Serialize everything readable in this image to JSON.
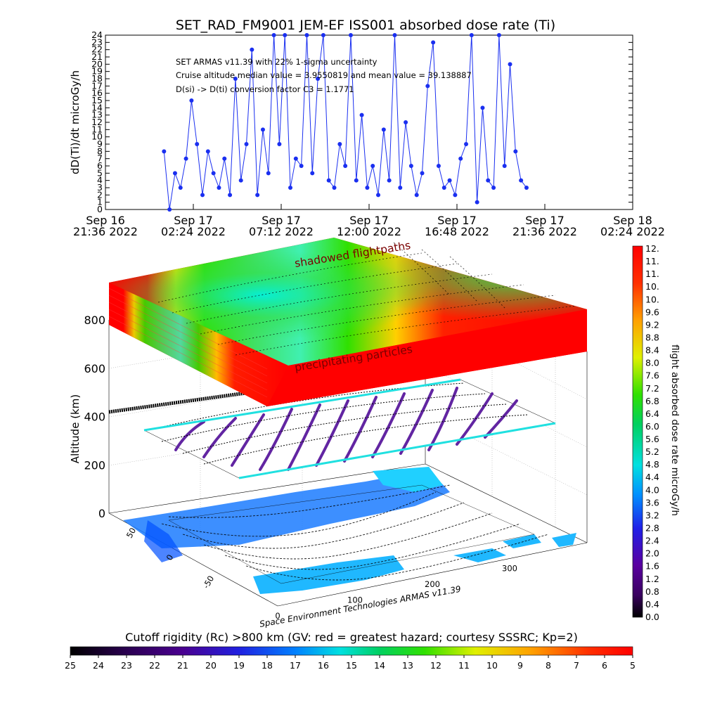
{
  "top_chart": {
    "title": "SET_RAD_FM9001  JEM-EF ISS001 absorbed dose rate (Ti)",
    "ylabel": "dD(Ti)/dt microGy/h",
    "annotations": [
      "SET ARMAS v11.39 with 22% 1-sigma uncertainty",
      "Cruise altitude median value = 3.9550819 and mean value = 39.138887",
      "D(si) -> D(ti) conversion factor C3 = 1.1771"
    ],
    "series_color": "#1a2ff0"
  },
  "chart_data": [
    {
      "type": "line",
      "title": "SET_RAD_FM9001  JEM-EF ISS001 absorbed dose rate (Ti)",
      "xlabel": "",
      "ylabel": "dD(Ti)/dt microGy/h",
      "ylim": [
        0,
        24
      ],
      "yticks": [
        0,
        1,
        2,
        3,
        4,
        5,
        6,
        7,
        8,
        9,
        10,
        11,
        12,
        13,
        14,
        15,
        16,
        17,
        18,
        19,
        20,
        21,
        22,
        23,
        24
      ],
      "xlim_hours": [
        0,
        28.8
      ],
      "xtick_labels": [
        {
          "top": "Sep 16",
          "bottom": "21:36 2022"
        },
        {
          "top": "Sep 17",
          "bottom": "02:24 2022"
        },
        {
          "top": "Sep 17",
          "bottom": "07:12 2022"
        },
        {
          "top": "Sep 17",
          "bottom": "12:00 2022"
        },
        {
          "top": "Sep 17",
          "bottom": "16:48 2022"
        },
        {
          "top": "Sep 17",
          "bottom": "21:36 2022"
        },
        {
          "top": "Sep 18",
          "bottom": "02:24 2022"
        }
      ],
      "x_hours_from_start": [
        3.2,
        3.5,
        3.8,
        4.1,
        4.4,
        4.7,
        5.0,
        5.3,
        5.6,
        5.9,
        6.2,
        6.5,
        6.8,
        7.1,
        7.4,
        7.7,
        8.0,
        8.3,
        8.6,
        8.9,
        9.2,
        9.5,
        9.8,
        10.1,
        10.4,
        10.7,
        11.0,
        11.3,
        11.6,
        11.9,
        12.2,
        12.5,
        12.8,
        13.1,
        13.4,
        13.7,
        14.0,
        14.3,
        14.6,
        14.9,
        15.2,
        15.5,
        15.8,
        16.1,
        16.4,
        16.7,
        17.0,
        17.3,
        17.6,
        17.9,
        18.2,
        18.5,
        18.8,
        19.1,
        19.4,
        19.7,
        20.0,
        20.3,
        20.6,
        20.9,
        21.2,
        21.5,
        21.8,
        22.1,
        22.4,
        22.7,
        23.0
      ],
      "y": [
        8,
        0,
        5,
        3,
        7,
        15,
        9,
        2,
        8,
        5,
        3,
        7,
        2,
        18,
        4,
        9,
        22,
        2,
        11,
        5,
        24,
        9,
        24,
        3,
        7,
        6,
        24,
        5,
        18,
        24,
        4,
        3,
        9,
        6,
        24,
        4,
        13,
        3,
        6,
        2,
        11,
        4,
        24,
        3,
        12,
        6,
        2,
        5,
        17,
        23,
        6,
        3,
        4,
        2,
        7,
        9,
        24,
        1,
        14,
        4,
        3,
        24,
        6,
        20,
        8,
        4,
        3
      ]
    },
    {
      "type": "heatmap",
      "title": "",
      "xlabel": "",
      "ylabel": "Altitude (km)",
      "z_ticks": [
        0,
        200,
        400,
        600,
        800
      ],
      "x_ticks": [
        0,
        100,
        200,
        300
      ],
      "y_ticks": [
        50,
        0,
        -50
      ],
      "colorbar_label": "flight absorbed dose rate microGy/h",
      "colorbar_ticks": [
        "12.",
        "11.",
        "11.",
        "10.",
        "10.",
        "9.6",
        "9.2",
        "8.8",
        "8.4",
        "8.0",
        "7.6",
        "7.2",
        "6.8",
        "6.4",
        "6.0",
        "5.6",
        "5.2",
        "4.8",
        "4.4",
        "4.0",
        "3.6",
        "3.2",
        "2.8",
        "2.4",
        "2.0",
        "1.6",
        "1.2",
        "0.8",
        "0.4",
        "0.0"
      ],
      "labels": [
        "shadowed flightpaths",
        "precipitating particles",
        "Space Environment Technologies ARMAS v11.39"
      ]
    },
    {
      "type": "bar",
      "title": "Cutoff rigidity (Rc) >800 km (GV: red = greatest hazard; courtesy SSSRC; Kp=2)",
      "ticks": [
        "25",
        "24",
        "23",
        "22",
        "21",
        "20",
        "19",
        "18",
        "17",
        "16",
        "15",
        "14",
        "13",
        "12",
        "11",
        "10",
        "9",
        "8",
        "7",
        "6",
        "5"
      ]
    }
  ]
}
